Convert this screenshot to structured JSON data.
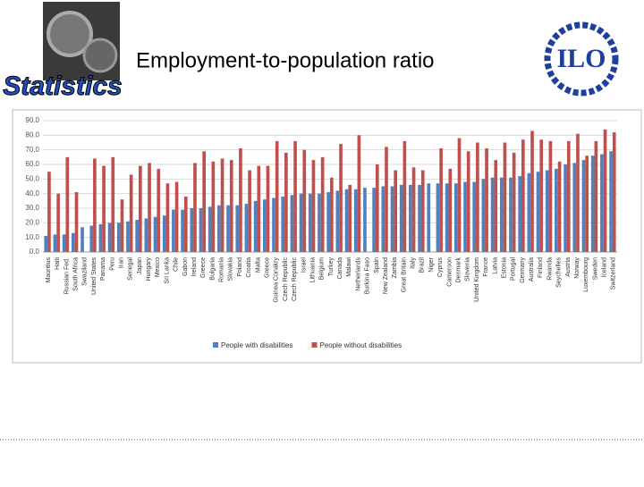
{
  "header": {
    "logo_text": "Statistics",
    "title": "Employment-to-population ratio",
    "org_logo": "ILO"
  },
  "chart_data": {
    "type": "bar",
    "categories": [
      "Mauritius",
      "Haiti",
      "Russian Fed.",
      "South Africa",
      "Swaziland",
      "United States",
      "Panama",
      "Peru",
      "Iran",
      "Senegal",
      "Japan",
      "Hungary",
      "Mexico",
      "Sri Lanka",
      "Chile",
      "Gabon",
      "Ireland",
      "Greece",
      "Bulgaria",
      "Romania",
      "Slovakia",
      "Poland",
      "Croatia",
      "Malta",
      "Greece",
      "Guinea Conakry",
      "Czech Republic",
      "Czech Republic",
      "Israel",
      "Lithuania",
      "Belgium",
      "Turkey",
      "Canada",
      "Malawi",
      "Netherlands",
      "Burkina Faso",
      "Spain",
      "New Zealand",
      "Zambia",
      "Great Britain",
      "Italy",
      "Brazil",
      "Niger",
      "Cyprus",
      "Cameroon",
      "Denmark",
      "Slovenia",
      "United Kingdom",
      "France",
      "Latvia",
      "Estonia",
      "Portugal",
      "Germany",
      "Australia",
      "Finland",
      "Rwanda",
      "Seychelles",
      "Austria",
      "Norway",
      "Luxembourg",
      "Sweden",
      "Iceland",
      "Switzerland"
    ],
    "series": [
      {
        "name": "People with disabilities",
        "color": "#4f81bd",
        "values": [
          11,
          12,
          12,
          13,
          17,
          18,
          19,
          20,
          20,
          21,
          22,
          23,
          24,
          25,
          29,
          29,
          30,
          30,
          31,
          32,
          32,
          32,
          33,
          35,
          36,
          37,
          38,
          39,
          40,
          40,
          40,
          41,
          42,
          43,
          43,
          44,
          44,
          45,
          45,
          46,
          46,
          46,
          47,
          47,
          47,
          47,
          48,
          48,
          50,
          51,
          51,
          51,
          52,
          54,
          55,
          56,
          57,
          60,
          61,
          63,
          66,
          67,
          69
        ]
      },
      {
        "name": "People without disabilities",
        "color": "#c0504d",
        "values": [
          55,
          40,
          65,
          41,
          null,
          64,
          59,
          65,
          36,
          53,
          59,
          61,
          57,
          47,
          48,
          38,
          61,
          69,
          62,
          64,
          63,
          71,
          56,
          59,
          59,
          76,
          68,
          76,
          70,
          63,
          65,
          51,
          74,
          46,
          80,
          null,
          60,
          72,
          56,
          76,
          58,
          56,
          null,
          71,
          57,
          78,
          69,
          75,
          71,
          63,
          75,
          68,
          77,
          83,
          77,
          76,
          62,
          76,
          81,
          66,
          76,
          84,
          82
        ]
      }
    ],
    "ylim": [
      0,
      90
    ],
    "yticks": [
      {
        "value": 0,
        "label": "0.0"
      },
      {
        "value": 10,
        "label": "10.0"
      },
      {
        "value": 20,
        "label": "20.0"
      },
      {
        "value": 30,
        "label": "30.0"
      },
      {
        "value": 40,
        "label": "40.0"
      },
      {
        "value": 50,
        "label": "50.0"
      },
      {
        "value": 60,
        "label": "60.0"
      },
      {
        "value": 70,
        "label": "70.0"
      },
      {
        "value": 80,
        "label": "80.0"
      },
      {
        "value": 90,
        "label": "90.0"
      }
    ],
    "grid": true,
    "legend": "bottom"
  }
}
